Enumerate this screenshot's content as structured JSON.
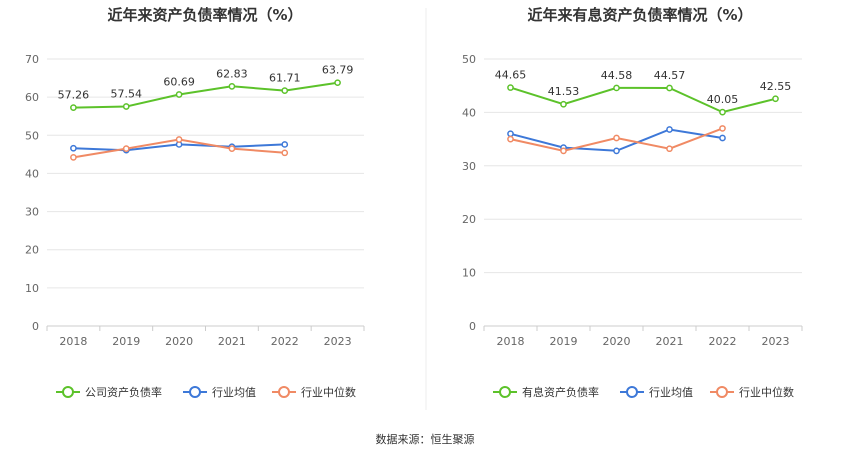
{
  "colors": {
    "company": "#5cc22a",
    "industry_avg": "#3d78d8",
    "industry_median": "#f08a64",
    "grid": "#e6e6e6",
    "axis": "#cccccc"
  },
  "source": "数据来源：恒生聚源",
  "chart_data": [
    {
      "type": "line",
      "title": "近年来资产负债率情况（%）",
      "x": [
        "2018",
        "2019",
        "2020",
        "2021",
        "2022",
        "2023"
      ],
      "ylim": [
        0,
        70
      ],
      "yticks": [
        0,
        10,
        20,
        30,
        40,
        50,
        60,
        70
      ],
      "grid": true,
      "legend_position": "bottom",
      "series": [
        {
          "name": "公司资产负债率",
          "key": "company",
          "values": [
            57.26,
            57.54,
            60.69,
            62.83,
            61.71,
            63.79
          ],
          "labels": [
            "57.26",
            "57.54",
            "60.69",
            "62.83",
            "61.71",
            "63.79"
          ]
        },
        {
          "name": "行业均值",
          "key": "industry_avg",
          "values": [
            46.6,
            46.1,
            47.6,
            47.0,
            47.6,
            null
          ]
        },
        {
          "name": "行业中位数",
          "key": "industry_median",
          "values": [
            44.2,
            46.5,
            48.9,
            46.5,
            45.4,
            null
          ]
        }
      ]
    },
    {
      "type": "line",
      "title": "近年来有息资产负债率情况（%）",
      "x": [
        "2018",
        "2019",
        "2020",
        "2021",
        "2022",
        "2023"
      ],
      "ylim": [
        0,
        50
      ],
      "yticks": [
        0,
        10,
        20,
        30,
        40,
        50
      ],
      "grid": true,
      "legend_position": "bottom",
      "series": [
        {
          "name": "有息资产负债率",
          "key": "company",
          "values": [
            44.65,
            41.53,
            44.58,
            44.57,
            40.05,
            42.55
          ],
          "labels": [
            "44.65",
            "41.53",
            "44.58",
            "44.57",
            "40.05",
            "42.55"
          ]
        },
        {
          "name": "行业均值",
          "key": "industry_avg",
          "values": [
            36.0,
            33.4,
            32.8,
            36.8,
            35.2,
            null
          ]
        },
        {
          "name": "行业中位数",
          "key": "industry_median",
          "values": [
            35.0,
            32.8,
            35.2,
            33.2,
            37.0,
            null
          ]
        }
      ]
    }
  ]
}
